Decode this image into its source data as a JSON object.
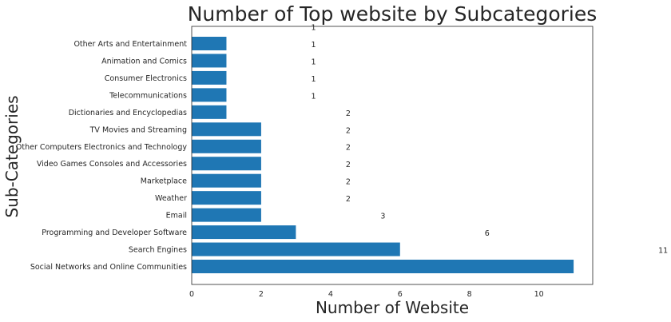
{
  "chart_data": {
    "type": "bar",
    "orientation": "horizontal",
    "title": "Number of Top website by Subcategories",
    "xlabel": "Number of Website",
    "ylabel": "Sub-Categories",
    "xlim": [
      0,
      11.55
    ],
    "x_ticks": [
      "0",
      "2",
      "4",
      "6",
      "8",
      "10"
    ],
    "bar_color": "#1f77b4",
    "grid": false,
    "categories": [
      "Social Networks and Online Communities",
      "Search Engines",
      "Programming and Developer Software",
      "Email",
      "Weather",
      "Marketplace",
      "Video Games Consoles and Accessories",
      "Other Computers Electronics and Technology",
      "TV Movies and Streaming",
      "Dictionaries and Encyclopedias",
      "Telecommunications",
      "Consumer Electronics",
      "Animation and Comics",
      "Other Arts and Entertainment"
    ],
    "values": [
      11,
      6,
      3,
      2,
      2,
      2,
      2,
      2,
      2,
      1,
      1,
      1,
      1,
      1
    ],
    "data_labels": [
      "11",
      "6",
      "3",
      "2",
      "2",
      "2",
      "2",
      "2",
      "2",
      "1",
      "1",
      "1",
      "1",
      "1"
    ]
  }
}
